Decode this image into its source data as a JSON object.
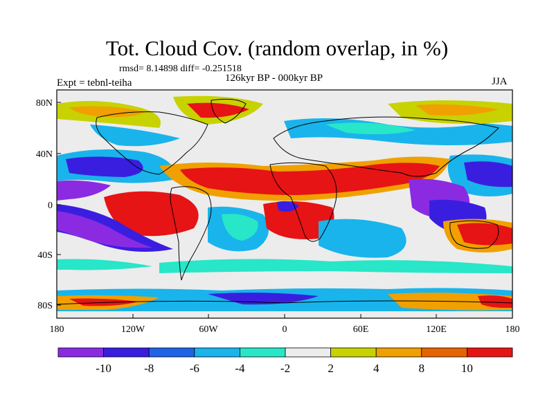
{
  "title": "Tot. Cloud Cov. (random overlap, in %)",
  "stats": "rmsd= 8.14898 diff= -0.251518",
  "subtitle": "126kyr BP - 000kyr BP",
  "expt": "Expt = tebnl-teiha",
  "season": "JJA",
  "y_ticks": [
    "80N",
    "40N",
    "0",
    "40S",
    "80S"
  ],
  "x_ticks": [
    "180",
    "120W",
    "60W",
    "0",
    "60E",
    "120E",
    "180"
  ],
  "colorbar": {
    "labels": [
      "-10",
      "-8",
      "-6",
      "-4",
      "-2",
      "2",
      "4",
      "8",
      "10"
    ],
    "colors": [
      "#8a2be2",
      "#3a1ee0",
      "#1e64e6",
      "#19b4eb",
      "#28e6c8",
      "#ececec",
      "#c8d200",
      "#f0a000",
      "#e66400",
      "#e61414"
    ]
  },
  "colors": {
    "ocean_neutral": "#ececec",
    "coastline": "#000000"
  }
}
